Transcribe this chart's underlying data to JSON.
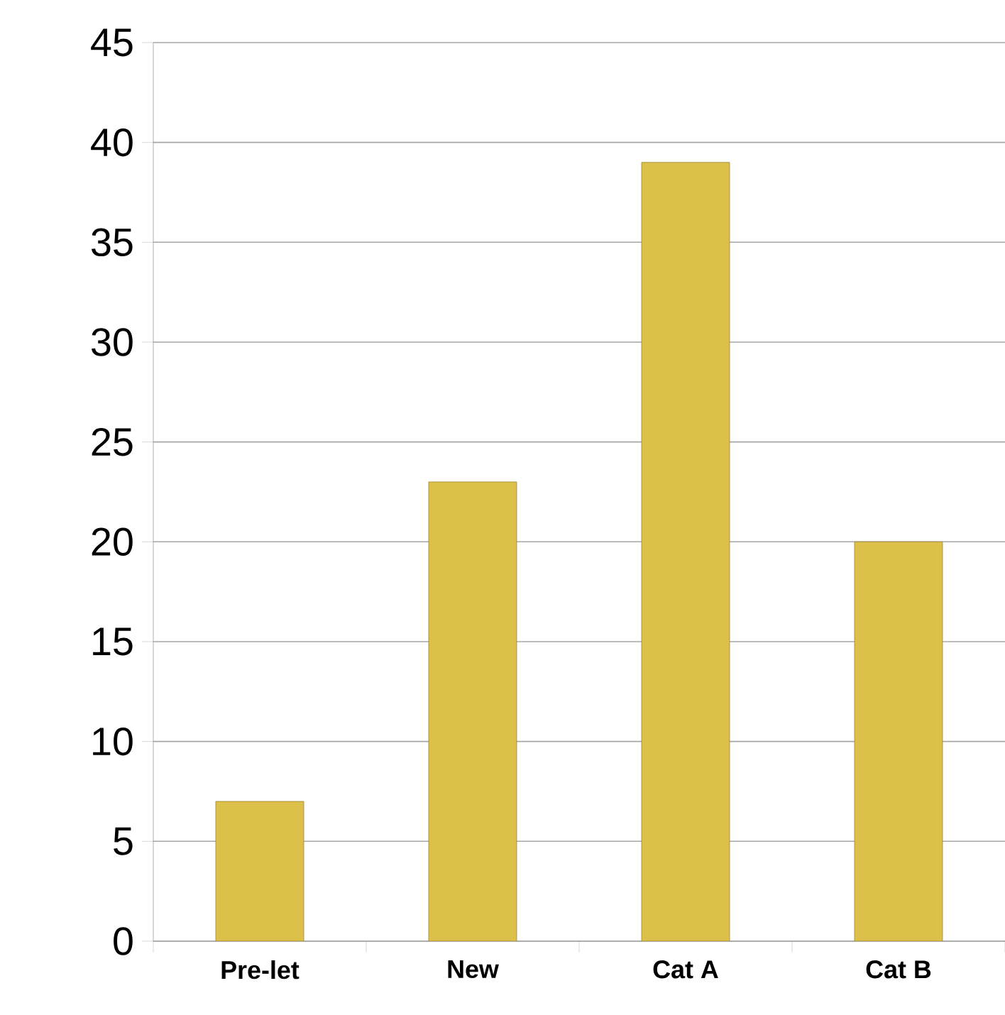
{
  "chart_data": {
    "type": "bar",
    "categories": [
      "Pre-let",
      "New",
      "Cat A",
      "Cat B"
    ],
    "values": [
      7,
      23,
      39,
      20
    ],
    "color": "#dcc04a",
    "ylim": [
      0,
      45
    ],
    "yticks": [
      0,
      5,
      10,
      15,
      20,
      25,
      30,
      35,
      40,
      45
    ],
    "grid": "y"
  }
}
